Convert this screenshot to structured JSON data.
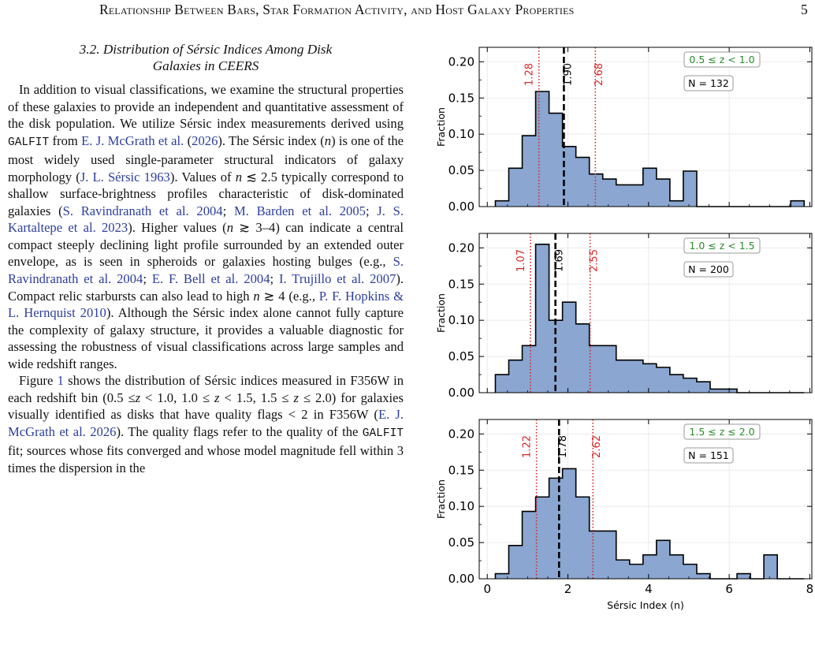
{
  "header": {
    "running_title": "Relationship Between Bars, Star Formation Activity, and Host Galaxy Properties",
    "page_number": "5"
  },
  "section": {
    "number": "3.2.",
    "title_line1": "Distribution of Sérsic Indices Among Disk",
    "title_line2": "Galaxies in CEERS"
  },
  "paragraphs": [
    [
      {
        "t": "In addition to visual classifications, we examine the structural properties of these galaxies to provide an independent and quantitative assessment of the disk population. We utilize Sérsic index measurements derived using "
      },
      {
        "t": "GALFIT",
        "s": "mono"
      },
      {
        "t": " from "
      },
      {
        "t": "E. J. McGrath et al.",
        "s": "link"
      },
      {
        "t": " ("
      },
      {
        "t": "2026",
        "s": "link"
      },
      {
        "t": "). The Sérsic index ("
      },
      {
        "t": "n",
        "s": "ital"
      },
      {
        "t": ") is one of the most widely used single-parameter structural indicators of galaxy morphology ("
      },
      {
        "t": "J. L. Sérsic 1963",
        "s": "link"
      },
      {
        "t": "). Values of "
      },
      {
        "t": "n",
        "s": "ital"
      },
      {
        "t": " ≲ 2.5 typically correspond to shallow surface-brightness profiles characteristic of disk-dominated galaxies ("
      },
      {
        "t": "S. Ravindranath et al. 2004",
        "s": "link"
      },
      {
        "t": "; "
      },
      {
        "t": "M. Barden et al. 2005",
        "s": "link"
      },
      {
        "t": "; "
      },
      {
        "t": "J. S. Kartaltepe et al. 2023",
        "s": "link"
      },
      {
        "t": "). Higher values ("
      },
      {
        "t": "n",
        "s": "ital"
      },
      {
        "t": " ≳ 3–4) can indicate a central compact steeply declining light profile surrounded by an extended outer envelope, as is seen in spheroids or galaxies hosting bulges (e.g., "
      },
      {
        "t": "S. Ravindranath et al. 2004",
        "s": "link"
      },
      {
        "t": "; "
      },
      {
        "t": "E. F. Bell et al. 2004",
        "s": "link"
      },
      {
        "t": "; "
      },
      {
        "t": "I. Trujillo et al. 2007",
        "s": "link"
      },
      {
        "t": "). Compact relic starbursts can also lead to high "
      },
      {
        "t": "n",
        "s": "ital"
      },
      {
        "t": " ≳ 4 (e.g., "
      },
      {
        "t": "P. F. Hopkins & L. Hernquist 2010",
        "s": "link"
      },
      {
        "t": "). Although the Sérsic index alone cannot fully capture the complexity of galaxy structure, it provides a valuable diagnostic for assessing the robustness of visual classifications across large samples and wide redshift ranges."
      }
    ],
    [
      {
        "t": "Figure "
      },
      {
        "t": "1",
        "s": "link"
      },
      {
        "t": " shows the distribution of Sérsic indices measured in F356W in each redshift bin (0.5 ≤"
      },
      {
        "t": "z",
        "s": "ital"
      },
      {
        "t": " < 1.0, 1.0 ≤ "
      },
      {
        "t": "z",
        "s": "ital"
      },
      {
        "t": " < 1.5, 1.5 ≤ "
      },
      {
        "t": "z",
        "s": "ital"
      },
      {
        "t": " ≤ 2.0) for galaxies visually identified as disks that have quality flags < 2 in F356W ("
      },
      {
        "t": "E. J. McGrath et al. 2026",
        "s": "link"
      },
      {
        "t": "). The quality flags refer to the quality of the "
      },
      {
        "t": "GALFIT",
        "s": "mono"
      },
      {
        "t": " fit; sources whose fits converged and whose model magnitude fell within 3 times the dispersion in the"
      }
    ]
  ],
  "chart_data": {
    "type": "bar",
    "histtype": "step-filled",
    "fill_color": "#8aa6d1",
    "edge_color": "#000000",
    "xlabel": "Sérsic Index (n)",
    "ylabel": "Fraction",
    "xlim": [
      -0.2,
      8.05
    ],
    "ylim": [
      0,
      0.22
    ],
    "xticks": [
      0,
      2,
      4,
      6,
      8
    ],
    "yticks": [
      "0.00",
      "0.05",
      "0.10",
      "0.15",
      "0.20"
    ],
    "bin_width": 0.333,
    "bin_start": 0.2,
    "grid": true,
    "legend_placement": "top-right",
    "marker_colors": {
      "median": "#000000",
      "percentile": "#d62728",
      "label_box": "#2a8a2a"
    },
    "panels": [
      {
        "zbin_label": "0.5 ≤ z < 1.0",
        "n_label": "N = 132",
        "median": 1.9,
        "median_label": "1.90",
        "p16": 1.28,
        "p16_label": "1.28",
        "p84": 2.68,
        "p84_label": "2.68",
        "values": [
          0.008,
          0.053,
          0.098,
          0.159,
          0.129,
          0.083,
          0.068,
          0.045,
          0.038,
          0.03,
          0.03,
          0.053,
          0.038,
          0.008,
          0.049,
          0,
          0,
          0,
          0,
          0,
          0,
          0,
          0.008
        ]
      },
      {
        "zbin_label": "1.0 ≤ z < 1.5",
        "n_label": "N = 200",
        "median": 1.69,
        "median_label": "1.69",
        "p16": 1.07,
        "p16_label": "1.07",
        "p84": 2.55,
        "p84_label": "2.55",
        "values": [
          0.025,
          0.045,
          0.065,
          0.205,
          0.1,
          0.125,
          0.095,
          0.065,
          0.065,
          0.045,
          0.045,
          0.04,
          0.035,
          0.025,
          0.02,
          0.015,
          0.005,
          0.005,
          0,
          0,
          0,
          0,
          0
        ]
      },
      {
        "zbin_label": "1.5 ≤ z ≤ 2.0",
        "n_label": "N = 151",
        "median": 1.78,
        "median_label": "1.78",
        "p16": 1.22,
        "p16_label": "1.22",
        "p84": 2.62,
        "p84_label": "2.62",
        "values": [
          0.007,
          0.046,
          0.093,
          0.113,
          0.139,
          0.152,
          0.113,
          0.066,
          0.066,
          0.026,
          0.02,
          0.033,
          0.053,
          0.033,
          0.02,
          0.007,
          0,
          0,
          0.007,
          0,
          0.033,
          0,
          0
        ]
      }
    ]
  }
}
